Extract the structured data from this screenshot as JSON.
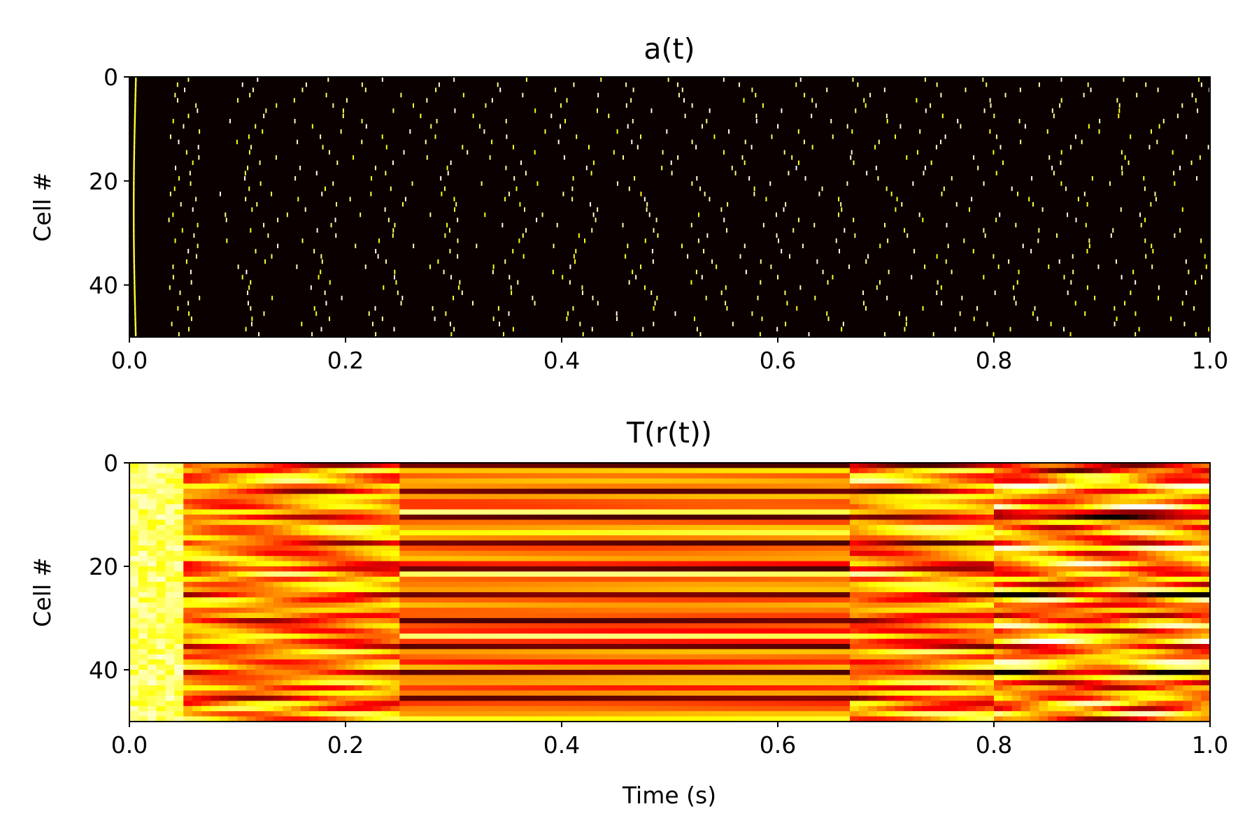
{
  "chart_data": [
    {
      "type": "heatmap",
      "title": "a(t)",
      "xlabel": "",
      "ylabel": "Cell #",
      "xlim": [
        0.0,
        1.0
      ],
      "ylim": [
        50,
        0
      ],
      "rows": 50,
      "x_ticks": [
        "0.0",
        "0.2",
        "0.4",
        "0.6",
        "0.8",
        "1.0"
      ],
      "x_tick_values": [
        0.0,
        0.2,
        0.4,
        0.6,
        0.8,
        1.0
      ],
      "y_ticks": [
        "0",
        "20",
        "40"
      ],
      "y_tick_values": [
        0,
        20,
        40
      ],
      "colormap": "hot",
      "background": "#0a0000",
      "description_values": "sparse spike raster; each of 50 cells spikes roughly every 0.05–0.06 s after an initial synchronous spike near t=0.005 s"
    },
    {
      "type": "heatmap",
      "title": "T(r(t))",
      "xlabel": "Time (s)",
      "ylabel": "Cell #",
      "xlim": [
        0.0,
        1.0
      ],
      "ylim": [
        50,
        0
      ],
      "rows": 50,
      "x_ticks": [
        "0.0",
        "0.2",
        "0.4",
        "0.6",
        "0.8",
        "1.0"
      ],
      "x_tick_values": [
        0.0,
        0.2,
        0.4,
        0.6,
        0.8,
        1.0
      ],
      "y_ticks": [
        "0",
        "20",
        "40"
      ],
      "y_tick_values": [
        0,
        20,
        40
      ],
      "colormap": "hot",
      "regime_boundaries": [
        0.25,
        0.67,
        0.8
      ]
    }
  ],
  "colors": {
    "hot_dark": "#0a0000",
    "hot_red": "#cc0000",
    "hot_orange": "#ff6600",
    "hot_yellow": "#ffdd00"
  }
}
